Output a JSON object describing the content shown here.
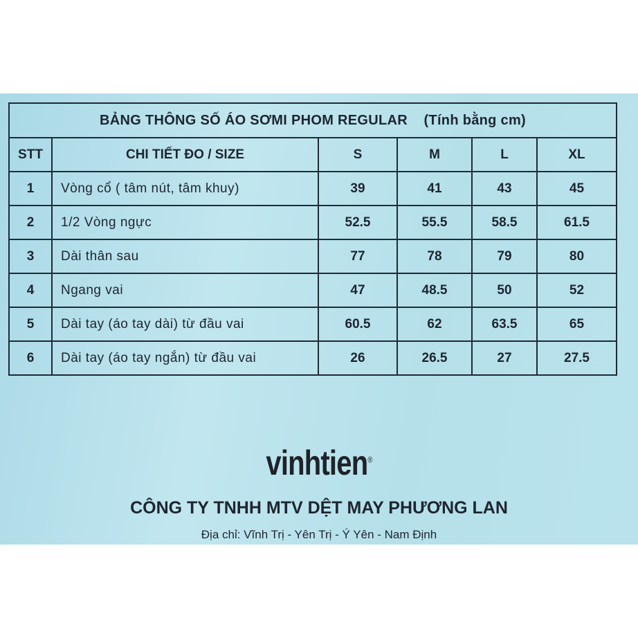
{
  "table": {
    "title": "BẢNG THÔNG SỐ ÁO SƠMI PHOM REGULAR",
    "unit": "(Tính bằng cm)",
    "headers": [
      "STT",
      "CHI TIẾT ĐO / SIZE",
      "S",
      "M",
      "L",
      "XL"
    ],
    "rows": [
      [
        "1",
        "Vòng cổ ( tâm nút, tâm khuy)",
        "39",
        "41",
        "43",
        "45"
      ],
      [
        "2",
        "1/2 Vòng ngực",
        "52.5",
        "55.5",
        "58.5",
        "61.5"
      ],
      [
        "3",
        "Dài thân sau",
        "77",
        "78",
        "79",
        "80"
      ],
      [
        "4",
        "Ngang vai",
        "47",
        "48.5",
        "50",
        "52"
      ],
      [
        "5",
        "Dài tay (áo tay dài) từ đầu vai",
        "60.5",
        "62",
        "63.5",
        "65"
      ],
      [
        "6",
        "Dài tay (áo tay ngắn) từ đầu vai",
        "26",
        "26.5",
        "27",
        "27.5"
      ]
    ]
  },
  "brand": {
    "logo": "vinhtien",
    "registered": "®"
  },
  "company": "CÔNG TY TNHH MTV DỆT MAY PHƯƠNG LAN",
  "address": "Địa chỉ: Vĩnh Trị - Yên Trị - Ý Yên - Nam Định"
}
